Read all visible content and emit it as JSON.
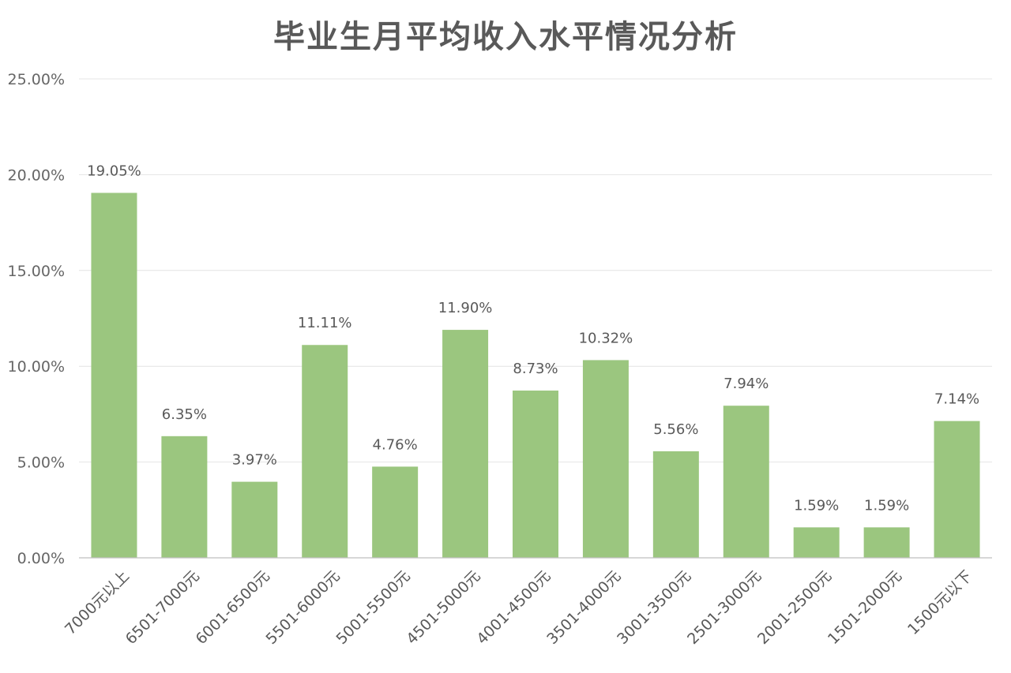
{
  "chart_data": {
    "type": "bar",
    "title": "毕业生月平均收入水平情况分析",
    "xlabel": "",
    "ylabel": "",
    "ylim": [
      0,
      25
    ],
    "y_tick_values": [
      0,
      5,
      10,
      15,
      20,
      25
    ],
    "y_tick_labels": [
      "0.00%",
      "5.00%",
      "10.00%",
      "15.00%",
      "20.00%",
      "25.00%"
    ],
    "grid": true,
    "legend": "none",
    "bar_color": "#9bc67f",
    "categories": [
      "7000元以上",
      "6501-7000元",
      "6001-6500元",
      "5501-6000元",
      "5001-5500元",
      "4501-5000元",
      "4001-4500元",
      "3501-4000元",
      "3001-3500元",
      "2501-3000元",
      "2001-2500元",
      "1501-2000元",
      "1500元以下"
    ],
    "values": [
      19.05,
      6.35,
      3.97,
      11.11,
      4.76,
      11.9,
      8.73,
      10.32,
      5.56,
      7.94,
      1.59,
      1.59,
      7.14
    ],
    "data_labels": [
      "19.05%",
      "6.35%",
      "3.97%",
      "11.11%",
      "4.76%",
      "11.90%",
      "8.73%",
      "10.32%",
      "5.56%",
      "7.94%",
      "1.59%",
      "1.59%",
      "7.14%"
    ]
  }
}
